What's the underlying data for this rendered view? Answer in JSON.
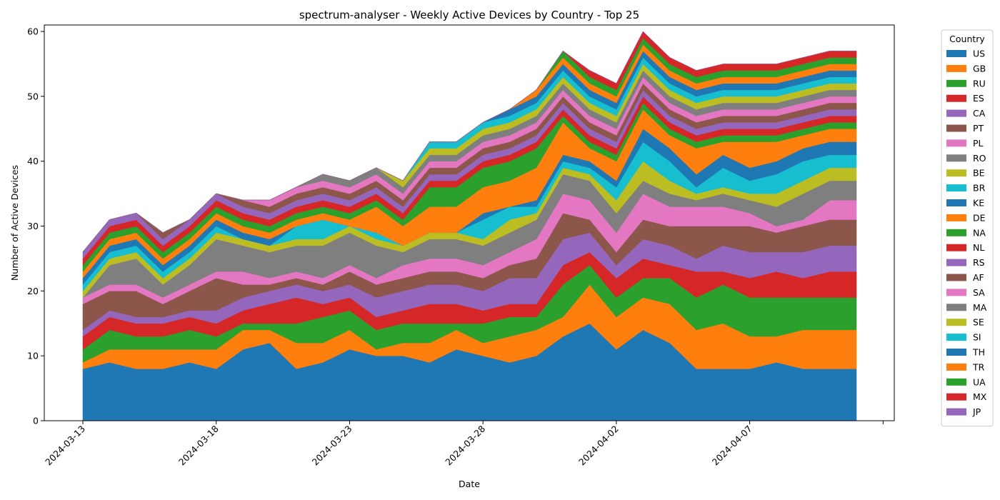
{
  "chart_data": {
    "type": "area",
    "stacked": true,
    "title": "spectrum-analyser - Weekly Active Devices by Country - Top 25",
    "xlabel": "Date",
    "ylabel": "Number of Active Devices",
    "ylim": [
      0,
      61
    ],
    "yticks": [
      0,
      10,
      20,
      30,
      40,
      50,
      60
    ],
    "xticks": [
      "2024-03-13",
      "2024-03-18",
      "2024-03-23",
      "2024-03-28",
      "2024-04-02",
      "2024-04-07"
    ],
    "grid": false,
    "legend_title": "Country",
    "legend_position": "outside-right",
    "x": [
      "2024-03-13",
      "2024-03-14",
      "2024-03-15",
      "2024-03-16",
      "2024-03-17",
      "2024-03-18",
      "2024-03-19",
      "2024-03-20",
      "2024-03-21",
      "2024-03-22",
      "2024-03-23",
      "2024-03-24",
      "2024-03-25",
      "2024-03-26",
      "2024-03-27",
      "2024-03-28",
      "2024-03-29",
      "2024-03-30",
      "2024-03-31",
      "2024-04-01",
      "2024-04-02",
      "2024-04-03",
      "2024-04-04",
      "2024-04-05",
      "2024-04-06",
      "2024-04-07",
      "2024-04-08",
      "2024-04-09",
      "2024-04-10",
      "2024-04-11"
    ],
    "series": [
      {
        "name": "US",
        "color": "#1f77b4",
        "values": [
          8,
          9,
          8,
          8,
          9,
          8,
          11,
          12,
          8,
          9,
          11,
          10,
          10,
          9,
          11,
          10,
          9,
          10,
          13,
          15,
          11,
          14,
          12,
          8,
          8,
          8,
          9,
          8,
          8,
          8
        ]
      },
      {
        "name": "GB",
        "color": "#ff7f0e",
        "values": [
          1,
          2,
          3,
          3,
          2,
          3,
          3,
          2,
          4,
          3,
          3,
          1,
          2,
          3,
          3,
          2,
          4,
          4,
          3,
          6,
          5,
          5,
          6,
          6,
          7,
          5,
          4,
          6,
          6,
          6
        ]
      },
      {
        "name": "RU",
        "color": "#2ca02c",
        "values": [
          2,
          3,
          2,
          2,
          3,
          2,
          1,
          1,
          3,
          4,
          3,
          3,
          3,
          3,
          1,
          3,
          3,
          2,
          5,
          3,
          3,
          3,
          4,
          5,
          6,
          6,
          6,
          5,
          5,
          5
        ]
      },
      {
        "name": "ES",
        "color": "#d62728",
        "values": [
          2,
          2,
          2,
          2,
          2,
          2,
          2,
          3,
          4,
          2,
          2,
          2,
          2,
          3,
          3,
          2,
          2,
          2,
          3,
          2,
          3,
          3,
          2,
          4,
          2,
          3,
          4,
          3,
          4,
          4
        ]
      },
      {
        "name": "CA",
        "color": "#9467bd",
        "values": [
          1,
          1,
          1,
          1,
          1,
          2,
          2,
          2,
          2,
          2,
          2,
          3,
          3,
          3,
          3,
          3,
          4,
          4,
          4,
          3,
          2,
          3,
          3,
          2,
          4,
          4,
          3,
          4,
          4,
          4
        ]
      },
      {
        "name": "PT",
        "color": "#8c564b",
        "values": [
          4,
          3,
          4,
          2,
          3,
          5,
          2,
          1,
          1,
          1,
          2,
          2,
          2,
          2,
          2,
          2,
          2,
          3,
          4,
          2,
          2,
          3,
          3,
          5,
          3,
          4,
          3,
          4,
          4,
          4
        ]
      },
      {
        "name": "PL",
        "color": "#e377c2",
        "values": [
          1,
          1,
          1,
          1,
          1,
          1,
          2,
          1,
          1,
          1,
          1,
          1,
          2,
          2,
          2,
          2,
          2,
          3,
          3,
          3,
          3,
          4,
          3,
          3,
          3,
          2,
          1,
          1,
          3,
          3
        ]
      },
      {
        "name": "RO",
        "color": "#7f7f7f",
        "values": [
          0,
          3,
          4,
          2,
          3,
          5,
          4,
          4,
          4,
          5,
          5,
          5,
          2,
          3,
          3,
          3,
          3,
          3,
          3,
          3,
          3,
          2,
          2,
          1,
          2,
          2,
          3,
          4,
          3,
          3
        ]
      },
      {
        "name": "BE",
        "color": "#bcbd22",
        "values": [
          1,
          1,
          1,
          1,
          1,
          1,
          1,
          1,
          1,
          1,
          1,
          1,
          1,
          1,
          1,
          1,
          2,
          1,
          1,
          1,
          2,
          3,
          2,
          1,
          1,
          1,
          2,
          2,
          2,
          2
        ]
      },
      {
        "name": "BR",
        "color": "#17becf",
        "values": [
          1,
          1,
          1,
          1,
          1,
          1,
          0,
          0,
          2,
          3,
          0,
          1,
          0,
          0,
          0,
          3,
          2,
          1,
          1,
          1,
          2,
          3,
          3,
          1,
          3,
          2,
          3,
          3,
          2,
          2
        ]
      },
      {
        "name": "KE",
        "color": "#1f77b4",
        "values": [
          1,
          1,
          1,
          1,
          1,
          1,
          1,
          1,
          0,
          0,
          0,
          0,
          0,
          0,
          0,
          1,
          0,
          1,
          1,
          1,
          1,
          2,
          2,
          2,
          2,
          2,
          2,
          2,
          2,
          2
        ]
      },
      {
        "name": "DE",
        "color": "#ff7f0e",
        "values": [
          1,
          1,
          1,
          1,
          1,
          1,
          1,
          1,
          1,
          1,
          1,
          4,
          3,
          4,
          4,
          4,
          4,
          5,
          5,
          2,
          3,
          3,
          2,
          4,
          2,
          4,
          3,
          2,
          2,
          2
        ]
      },
      {
        "name": "NA",
        "color": "#2ca02c",
        "values": [
          1,
          1,
          1,
          1,
          1,
          1,
          1,
          1,
          1,
          1,
          1,
          1,
          1,
          3,
          3,
          3,
          3,
          3,
          1,
          1,
          1,
          1,
          1,
          1,
          1,
          1,
          1,
          1,
          1,
          1
        ]
      },
      {
        "name": "NL",
        "color": "#d62728",
        "values": [
          1,
          1,
          1,
          1,
          1,
          1,
          1,
          1,
          1,
          1,
          1,
          1,
          1,
          1,
          1,
          1,
          1,
          1,
          1,
          1,
          1,
          1,
          1,
          1,
          1,
          1,
          1,
          1,
          1,
          1
        ]
      },
      {
        "name": "RS",
        "color": "#9467bd",
        "values": [
          1,
          1,
          1,
          1,
          1,
          1,
          1,
          1,
          1,
          1,
          1,
          1,
          1,
          1,
          1,
          1,
          1,
          1,
          1,
          1,
          1,
          1,
          1,
          1,
          1,
          1,
          1,
          1,
          1,
          1
        ]
      },
      {
        "name": "AF",
        "color": "#8c564b",
        "values": [
          0,
          0,
          0,
          1,
          0,
          0,
          1,
          1,
          1,
          1,
          1,
          1,
          1,
          1,
          1,
          1,
          1,
          1,
          1,
          1,
          1,
          1,
          1,
          1,
          1,
          1,
          1,
          1,
          1,
          1
        ]
      },
      {
        "name": "SA",
        "color": "#e377c2",
        "values": [
          0,
          0,
          0,
          0,
          0,
          0,
          0,
          1,
          1,
          1,
          1,
          1,
          1,
          1,
          1,
          1,
          1,
          1,
          1,
          1,
          1,
          1,
          1,
          1,
          1,
          1,
          1,
          1,
          1,
          1
        ]
      },
      {
        "name": "MA",
        "color": "#7f7f7f",
        "values": [
          0,
          0,
          0,
          0,
          0,
          0,
          0,
          0,
          0,
          1,
          1,
          1,
          1,
          1,
          1,
          1,
          1,
          1,
          1,
          1,
          1,
          1,
          1,
          1,
          1,
          1,
          1,
          1,
          1,
          1
        ]
      },
      {
        "name": "SE",
        "color": "#bcbd22",
        "values": [
          0,
          0,
          0,
          0,
          0,
          0,
          0,
          0,
          0,
          0,
          0,
          0,
          1,
          1,
          1,
          1,
          1,
          1,
          1,
          1,
          1,
          1,
          1,
          1,
          1,
          1,
          1,
          1,
          1,
          1
        ]
      },
      {
        "name": "SI",
        "color": "#17becf",
        "values": [
          0,
          0,
          0,
          0,
          0,
          0,
          0,
          0,
          0,
          0,
          0,
          0,
          0,
          1,
          1,
          1,
          1,
          1,
          1,
          1,
          1,
          1,
          1,
          1,
          1,
          1,
          1,
          1,
          1,
          1
        ]
      },
      {
        "name": "TH",
        "color": "#1f77b4",
        "values": [
          0,
          0,
          0,
          0,
          0,
          0,
          0,
          0,
          0,
          0,
          0,
          0,
          0,
          0,
          0,
          0,
          1,
          1,
          1,
          1,
          1,
          1,
          1,
          1,
          1,
          1,
          1,
          1,
          1,
          1
        ]
      },
      {
        "name": "TR",
        "color": "#ff7f0e",
        "values": [
          0,
          0,
          0,
          0,
          0,
          0,
          0,
          0,
          0,
          0,
          0,
          0,
          0,
          0,
          0,
          0,
          0,
          1,
          1,
          1,
          1,
          1,
          1,
          1,
          1,
          1,
          1,
          1,
          1,
          1
        ]
      },
      {
        "name": "UA",
        "color": "#2ca02c",
        "values": [
          0,
          0,
          0,
          0,
          0,
          0,
          0,
          0,
          0,
          0,
          0,
          0,
          0,
          0,
          0,
          0,
          0,
          0,
          1,
          1,
          1,
          1,
          1,
          1,
          1,
          1,
          1,
          1,
          1,
          1
        ]
      },
      {
        "name": "MX",
        "color": "#d62728",
        "values": [
          0,
          0,
          0,
          0,
          0,
          0,
          0,
          0,
          0,
          0,
          0,
          0,
          0,
          0,
          0,
          0,
          0,
          0,
          0,
          1,
          1,
          1,
          1,
          1,
          1,
          1,
          1,
          1,
          1,
          1
        ]
      },
      {
        "name": "JP",
        "color": "#9467bd",
        "values": [
          0,
          0,
          0,
          0,
          0,
          0,
          0,
          0,
          0,
          0,
          0,
          0,
          0,
          0,
          0,
          0,
          0,
          0,
          0,
          0,
          0,
          0,
          0,
          0,
          0,
          0,
          0,
          0,
          0,
          0
        ]
      }
    ]
  }
}
